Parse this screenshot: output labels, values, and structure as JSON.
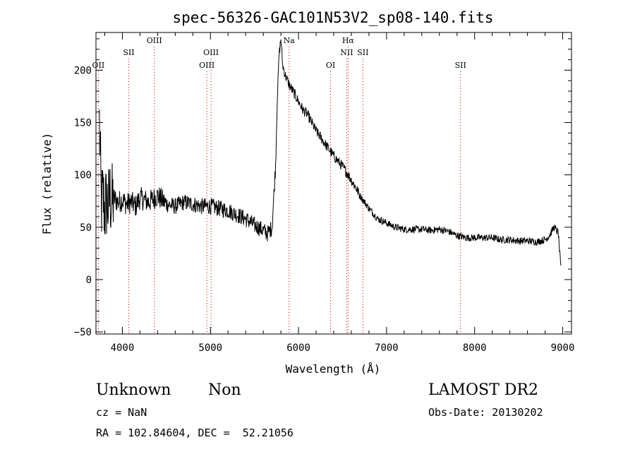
{
  "chart_data": {
    "type": "line",
    "title": "spec-56326-GAC101N53V2_sp08-140.fits",
    "xlabel": "Wavelength (Å)",
    "ylabel": "Flux (relative)",
    "xlim": [
      3700,
      9100
    ],
    "ylim": [
      -52,
      236
    ],
    "x_ticks": [
      4000,
      5000,
      6000,
      7000,
      8000,
      9000
    ],
    "y_ticks": [
      -50,
      0,
      50,
      100,
      150,
      200
    ],
    "grid": false,
    "colors": {
      "spectrum": "#000000",
      "lines": "#cc0000",
      "axes": "#000000"
    },
    "series": [
      {
        "x": [
          3740,
          3760,
          3780,
          3800,
          3820,
          3840,
          3860,
          3880,
          3900,
          3950,
          4000,
          4050,
          4100,
          4150,
          4200,
          4300,
          4400,
          4500,
          4600,
          4700,
          4800,
          4900,
          5000,
          5100,
          5200,
          5300,
          5400,
          5500,
          5600,
          5650,
          5700,
          5740,
          5760,
          5780,
          5800,
          5820,
          5850,
          5900,
          5950,
          6000,
          6050,
          6100,
          6150,
          6200,
          6300,
          6400,
          6500,
          6550,
          6600,
          6650,
          6700,
          6800,
          6900,
          7000,
          7100,
          7200,
          7300,
          7400,
          7500,
          7600,
          7700,
          7800,
          7900,
          8000,
          8100,
          8200,
          8300,
          8400,
          8500,
          8600,
          8700,
          8800,
          8850,
          8900,
          8950,
          8980
        ],
        "y": [
          150,
          70,
          80,
          65,
          75,
          70,
          80,
          72,
          78,
          74,
          76,
          72,
          74,
          70,
          78,
          74,
          80,
          72,
          70,
          74,
          72,
          70,
          70,
          68,
          66,
          62,
          58,
          52,
          47,
          44,
          50,
          110,
          175,
          215,
          230,
          205,
          195,
          185,
          178,
          170,
          162,
          158,
          150,
          142,
          130,
          118,
          108,
          102,
          95,
          88,
          80,
          68,
          58,
          54,
          50,
          48,
          48,
          48,
          47,
          48,
          46,
          42,
          40,
          40,
          40,
          40,
          38,
          38,
          37,
          37,
          36,
          38,
          42,
          50,
          45,
          10
        ]
      }
    ],
    "emission_lines": [
      {
        "label": "OII",
        "x": 3727,
        "row": 3
      },
      {
        "label": "SII",
        "x": 4072,
        "row": 2
      },
      {
        "label": "OIII",
        "x": 4363,
        "row": 1
      },
      {
        "label": "OIII",
        "x": 4959,
        "row": 3
      },
      {
        "label": "OIII",
        "x": 5007,
        "row": 2
      },
      {
        "label": "Na",
        "x": 5893,
        "row": 1
      },
      {
        "label": "OI",
        "x": 6364,
        "row": 3
      },
      {
        "label": "NII",
        "x": 6548,
        "row": 2
      },
      {
        "label": "Hα",
        "x": 6563,
        "row": 1
      },
      {
        "label": "SII",
        "x": 6731,
        "row": 2
      },
      {
        "label": "SII",
        "x": 7840,
        "row": 3
      }
    ]
  },
  "info": {
    "class": "Unknown",
    "subclass": "Non",
    "survey": "LAMOST DR2",
    "cz": "cz = NaN",
    "obs_date": "Obs-Date: 20130202",
    "coords": "RA = 102.84604, DEC =  52.21056"
  }
}
